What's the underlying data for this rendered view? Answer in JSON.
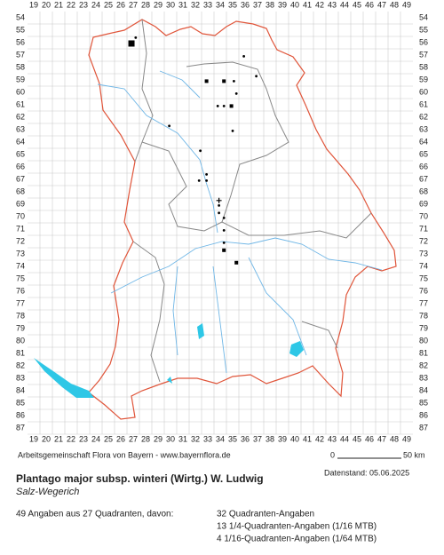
{
  "columns": [
    19,
    20,
    21,
    22,
    23,
    24,
    25,
    26,
    27,
    28,
    29,
    30,
    31,
    32,
    33,
    34,
    35,
    36,
    37,
    38,
    39,
    40,
    41,
    42,
    43,
    44,
    45,
    46,
    47,
    48,
    49
  ],
  "rows": [
    54,
    55,
    56,
    57,
    58,
    59,
    60,
    61,
    62,
    63,
    64,
    65,
    66,
    67,
    68,
    69,
    70,
    71,
    72,
    73,
    74,
    75,
    76,
    77,
    78,
    79,
    80,
    81,
    82,
    83,
    84,
    85,
    86,
    87
  ],
  "points": [
    {
      "x": 26.86,
      "y": 56.07,
      "kind": "square-large"
    },
    {
      "x": 27.2,
      "y": 55.6,
      "kind": "dot"
    },
    {
      "x": 35.9,
      "y": 57.1,
      "kind": "dot"
    },
    {
      "x": 32.9,
      "y": 59.1,
      "kind": "square"
    },
    {
      "x": 34.3,
      "y": 59.1,
      "kind": "square"
    },
    {
      "x": 35.1,
      "y": 59.1,
      "kind": "dot"
    },
    {
      "x": 36.9,
      "y": 58.7,
      "kind": "dot"
    },
    {
      "x": 35.3,
      "y": 60.1,
      "kind": "dot"
    },
    {
      "x": 33.8,
      "y": 61.1,
      "kind": "dot"
    },
    {
      "x": 34.3,
      "y": 61.1,
      "kind": "dot"
    },
    {
      "x": 34.9,
      "y": 61.1,
      "kind": "square"
    },
    {
      "x": 35,
      "y": 63.1,
      "kind": "dot"
    },
    {
      "x": 29.9,
      "y": 62.7,
      "kind": "dot"
    },
    {
      "x": 32.4,
      "y": 64.7,
      "kind": "dot"
    },
    {
      "x": 32.9,
      "y": 66.6,
      "kind": "dot"
    },
    {
      "x": 32.9,
      "y": 67.1,
      "kind": "dot"
    },
    {
      "x": 32.3,
      "y": 67.1,
      "kind": "dot"
    },
    {
      "x": 33.9,
      "y": 68.7,
      "kind": "cross"
    },
    {
      "x": 33.9,
      "y": 69.1,
      "kind": "dot"
    },
    {
      "x": 33.9,
      "y": 69.7,
      "kind": "dot"
    },
    {
      "x": 34.3,
      "y": 70.1,
      "kind": "dot"
    },
    {
      "x": 34.3,
      "y": 71.1,
      "kind": "dot"
    },
    {
      "x": 34.3,
      "y": 72.1,
      "kind": "dot"
    },
    {
      "x": 34.3,
      "y": 72.7,
      "kind": "square"
    },
    {
      "x": 35.3,
      "y": 73.7,
      "kind": "square"
    }
  ],
  "footer": {
    "credit": "Arbeitsgemeinschaft Flora von Bayern - www.bayernflora.de",
    "scale_start": "0",
    "scale_end": "50 km",
    "date": "Datenstand: 05.06.2025"
  },
  "title": "Plantago major subsp. winteri (Wirtg.) W. Ludwig",
  "subtitle": "Salz-Wegerich",
  "stats": {
    "summary": "49 Angaben aus 27 Quadranten, davon:",
    "lines": [
      "32 Quadranten-Angaben",
      "13 1/4-Quadranten-Angaben (1/16 MTB)",
      "4 1/16-Quadranten-Angaben (1/64 MTB)"
    ]
  }
}
